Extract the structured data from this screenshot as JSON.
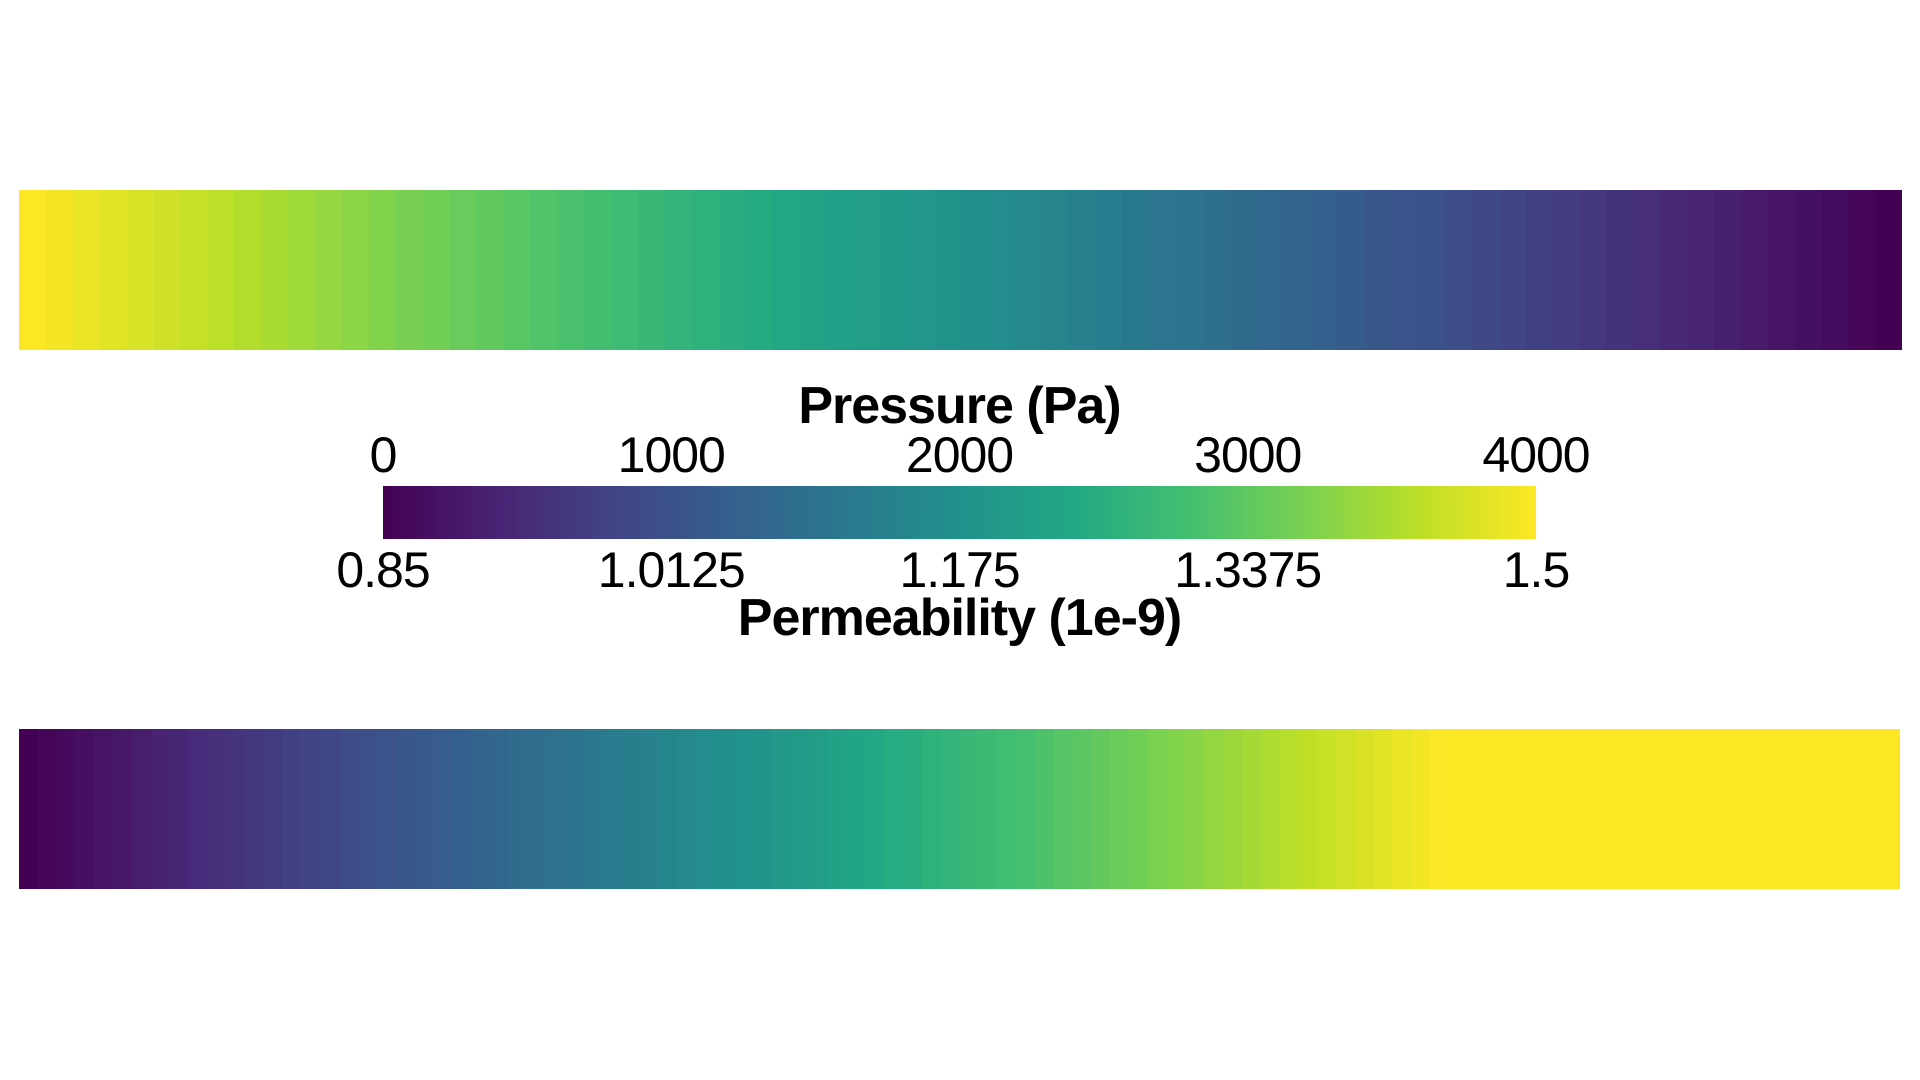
{
  "page": {
    "background_color": "#ffffff",
    "text_color": "#000000"
  },
  "legend": {
    "pressure": {
      "label": "Pressure (Pa)"
    },
    "permeability": {
      "label": "Permeability (1e-9)"
    }
  },
  "chart_data": {
    "type": "heatmap",
    "colormap": "viridis",
    "colormap_stops": [
      [
        0.0,
        "#440154"
      ],
      [
        0.1,
        "#482475"
      ],
      [
        0.2,
        "#414487"
      ],
      [
        0.3,
        "#355f8d"
      ],
      [
        0.4,
        "#2a788e"
      ],
      [
        0.5,
        "#21918c"
      ],
      [
        0.6,
        "#22a884"
      ],
      [
        0.7,
        "#44bf70"
      ],
      [
        0.8,
        "#7ad151"
      ],
      [
        0.9,
        "#bddf26"
      ],
      [
        1.0,
        "#fde725"
      ]
    ],
    "colorbar": {
      "pressure_axis": {
        "label": "Pressure (Pa)",
        "side": "top",
        "range": [
          0,
          4000
        ],
        "ticks": [
          0,
          1000,
          2000,
          3000,
          4000
        ],
        "tick_labels": [
          "0",
          "1000",
          "2000",
          "3000",
          "4000"
        ]
      },
      "permeability_axis": {
        "label": "Permeability (1e-9)",
        "side": "bottom",
        "range": [
          0.85,
          1.5
        ],
        "ticks": [
          0.85,
          1.0125,
          1.175,
          1.3375,
          1.5
        ],
        "tick_labels": [
          "0.85",
          "1.0125",
          "1.175",
          "1.3375",
          "1.5"
        ]
      }
    },
    "field_bars": [
      {
        "name": "pressure",
        "position": "top strip",
        "value_left": 4000,
        "value_right": 0,
        "profile": "linear",
        "normalized_start": 1.0,
        "normalized_end": 0.0,
        "plateau_start_fraction": 1.0,
        "cells": 70
      },
      {
        "name": "permeability",
        "position": "bottom strip",
        "value_left": 0.85,
        "value_right": 1.5,
        "profile": "linear-then-plateau",
        "normalized_start": 0.0,
        "normalized_end": 1.0,
        "plateau_start_fraction": 0.76,
        "cells": 100
      }
    ]
  }
}
